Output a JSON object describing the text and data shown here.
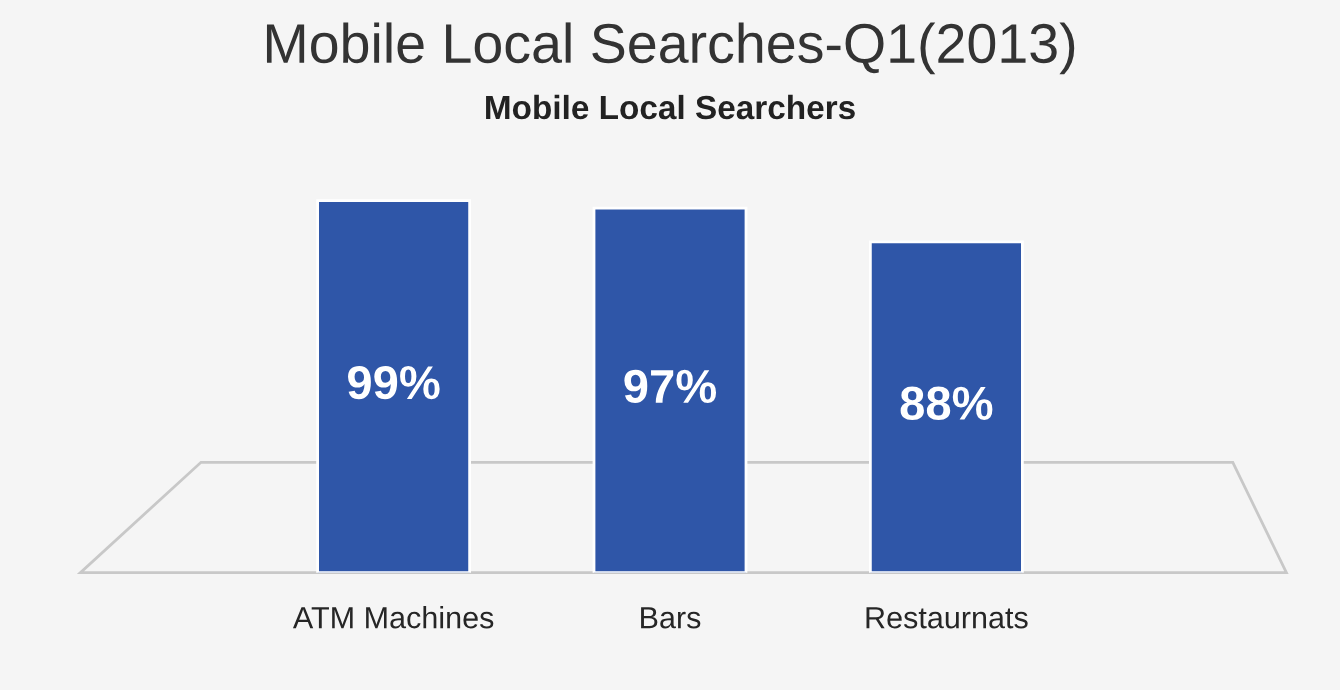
{
  "chart_data": {
    "type": "bar",
    "title": "Mobile Local Searches-Q1(2013)",
    "subtitle": "Mobile Local Searchers",
    "categories": [
      "ATM Machines",
      "Bars",
      "Restaurnats"
    ],
    "values": [
      99,
      97,
      88
    ],
    "value_labels": [
      "99%",
      "97%",
      "88%"
    ],
    "color": "#2f56a8",
    "grid": false,
    "legend": false
  }
}
